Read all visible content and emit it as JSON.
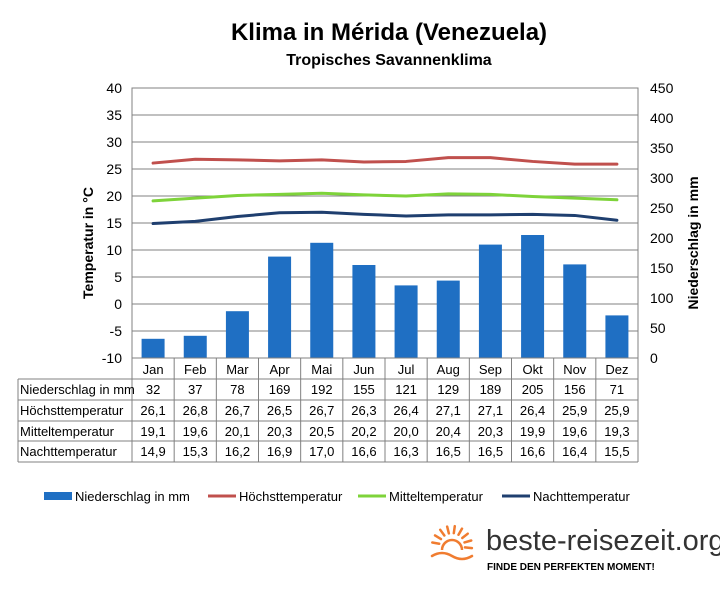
{
  "chart_data": {
    "type": "bar",
    "title": "Klima in Mérida (Venezuela)",
    "subtitle": "Tropisches Savannenklima",
    "ylabel": "Temperatur in °C",
    "y2label": "Niederschlag in mm",
    "ylim": [
      -10,
      40
    ],
    "y_ticks": [
      "40",
      "35",
      "30",
      "25",
      "20",
      "15",
      "10",
      "5",
      "0",
      "-5",
      "-10"
    ],
    "y2lim": [
      0,
      450
    ],
    "y2_ticks": [
      "450",
      "400",
      "350",
      "300",
      "250",
      "200",
      "150",
      "100",
      "50",
      "0"
    ],
    "grid": true,
    "legend_position": "bottom",
    "categories": [
      "Jan",
      "Feb",
      "Mar",
      "Apr",
      "Mai",
      "Jun",
      "Jul",
      "Aug",
      "Sep",
      "Okt",
      "Nov",
      "Dez"
    ],
    "series": [
      {
        "name": "Niederschlag in mm",
        "type": "bar",
        "axis": "right",
        "color": "#1f6fc3",
        "values": [
          32,
          37,
          78,
          169,
          192,
          155,
          121,
          129,
          189,
          205,
          156,
          71
        ],
        "labels": [
          "32",
          "37",
          "78",
          "169",
          "192",
          "155",
          "121",
          "129",
          "189",
          "205",
          "156",
          "71"
        ]
      },
      {
        "name": "Höchsttemperatur",
        "type": "line",
        "axis": "left",
        "color": "#c0504d",
        "values": [
          26.1,
          26.8,
          26.7,
          26.5,
          26.7,
          26.3,
          26.4,
          27.1,
          27.1,
          26.4,
          25.9,
          25.9
        ],
        "labels": [
          "26,1",
          "26,8",
          "26,7",
          "26,5",
          "26,7",
          "26,3",
          "26,4",
          "27,1",
          "27,1",
          "26,4",
          "25,9",
          "25,9"
        ]
      },
      {
        "name": "Mitteltemperatur",
        "type": "line",
        "axis": "left",
        "color": "#7ed33a",
        "values": [
          19.1,
          19.6,
          20.1,
          20.3,
          20.5,
          20.2,
          20.0,
          20.4,
          20.3,
          19.9,
          19.6,
          19.3
        ],
        "labels": [
          "19,1",
          "19,6",
          "20,1",
          "20,3",
          "20,5",
          "20,2",
          "20,0",
          "20,4",
          "20,3",
          "19,9",
          "19,6",
          "19,3"
        ]
      },
      {
        "name": "Nachttemperatur",
        "type": "line",
        "axis": "left",
        "color": "#1f3f6f",
        "values": [
          14.9,
          15.3,
          16.2,
          16.9,
          17.0,
          16.6,
          16.3,
          16.5,
          16.5,
          16.6,
          16.4,
          15.5
        ],
        "labels": [
          "14,9",
          "15,3",
          "16,2",
          "16,9",
          "17,0",
          "16,6",
          "16,3",
          "16,5",
          "16,5",
          "16,6",
          "16,4",
          "15,5"
        ]
      }
    ]
  },
  "branding": {
    "name": "beste-reisezeit.org",
    "tagline": "FINDE DEN PERFEKTEN MOMENT!",
    "icon": "sun-icon",
    "color": "#f07c30"
  }
}
